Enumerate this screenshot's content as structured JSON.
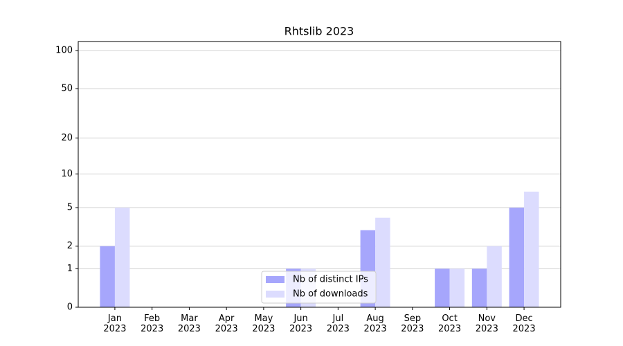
{
  "chart_data": {
    "type": "bar",
    "title": "Rhtslib 2023",
    "categories": [
      "Jan\n2023",
      "Feb\n2023",
      "Mar\n2023",
      "Apr\n2023",
      "May\n2023",
      "Jun\n2023",
      "Jul\n2023",
      "Aug\n2023",
      "Sep\n2023",
      "Oct\n2023",
      "Nov\n2023",
      "Dec\n2023"
    ],
    "series": [
      {
        "name": "Nb of distinct IPs",
        "color": "#a6a6fc",
        "values": [
          2,
          0,
          0,
          0,
          0,
          1,
          0,
          3,
          0,
          1,
          1,
          5
        ]
      },
      {
        "name": "Nb of downloads",
        "color": "#dcdcfe",
        "values": [
          5,
          0,
          0,
          0,
          0,
          1,
          0,
          4,
          0,
          1,
          2,
          7
        ]
      }
    ],
    "yscale": "log1p",
    "ylim": [
      0,
      118
    ],
    "yticks": [
      0,
      1,
      2,
      5,
      10,
      20,
      50,
      100
    ],
    "grid": true,
    "legend": "lower center"
  }
}
